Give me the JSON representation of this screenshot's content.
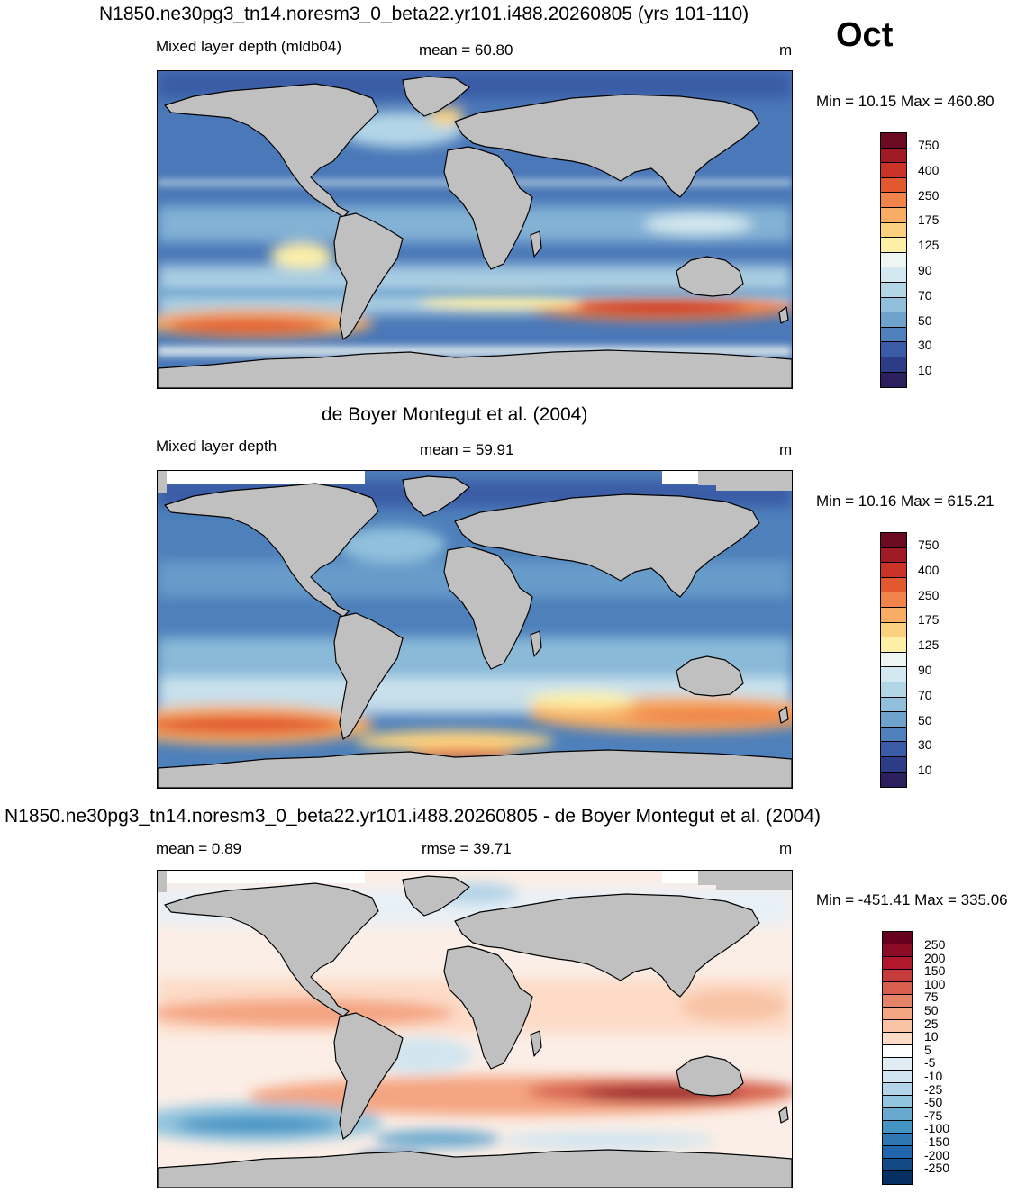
{
  "figure": {
    "title": "N1850.ne30pg3_tn14.noresm3_0_beta22.yr101.i488.20260805 (yrs 101-110)",
    "month": "Oct"
  },
  "panels": [
    {
      "heading": "",
      "left_label": "Mixed layer depth (mldb04)",
      "center_label": "mean =  60.80",
      "unit": "m",
      "minmax": "Min =  10.15 Max = 460.80",
      "colorbar": {
        "labels": [
          "750",
          "400",
          "250",
          "175",
          "125",
          "90",
          "70",
          "50",
          "30",
          "10"
        ],
        "colors": [
          "#6b0c22",
          "#a11b25",
          "#cc3328",
          "#e2582f",
          "#f0844a",
          "#f7ad63",
          "#fbd17f",
          "#fdefa6",
          "#eef6f3",
          "#d3e8ef",
          "#b3d6e7",
          "#91c0dc",
          "#6ea3cd",
          "#4e80bb",
          "#3a5ca6",
          "#2d3c86",
          "#2b1f5e"
        ]
      }
    },
    {
      "heading": "de Boyer Montegut et al. (2004)",
      "left_label": "Mixed layer depth",
      "center_label": "mean =  59.91",
      "unit": "m",
      "minmax": "Min =  10.16 Max = 615.21",
      "colorbar": {
        "labels": [
          "750",
          "400",
          "250",
          "175",
          "125",
          "90",
          "70",
          "50",
          "30",
          "10"
        ],
        "colors": [
          "#6b0c22",
          "#a11b25",
          "#cc3328",
          "#e2582f",
          "#f0844a",
          "#f7ad63",
          "#fbd17f",
          "#fdefa6",
          "#eef6f3",
          "#d3e8ef",
          "#b3d6e7",
          "#91c0dc",
          "#6ea3cd",
          "#4e80bb",
          "#3a5ca6",
          "#2d3c86",
          "#2b1f5e"
        ]
      }
    },
    {
      "heading": "N1850.ne30pg3_tn14.noresm3_0_beta22.yr101.i488.20260805 - de Boyer Montegut et al. (2004)",
      "left_label": "mean =   0.89",
      "center_label": "rmse =  39.71",
      "unit": "m",
      "minmax": "Min = -451.41 Max = 335.06",
      "colorbar": {
        "labels": [
          "250",
          "200",
          "150",
          "100",
          "75",
          "50",
          "25",
          "10",
          "5",
          "-5",
          "-10",
          "-25",
          "-50",
          "-75",
          "-100",
          "-150",
          "-200",
          "-250"
        ],
        "colors": [
          "#67001f",
          "#8d0c25",
          "#b2182b",
          "#c63c3a",
          "#d6604d",
          "#e58368",
          "#f4a582",
          "#f8c3a5",
          "#fddbc7",
          "#ffffff",
          "#e1edf5",
          "#d1e5f0",
          "#b3d4e8",
          "#92c5de",
          "#6aa9cf",
          "#4393c3",
          "#2f76b3",
          "#2166ac",
          "#134a86",
          "#053061"
        ]
      }
    }
  ]
}
